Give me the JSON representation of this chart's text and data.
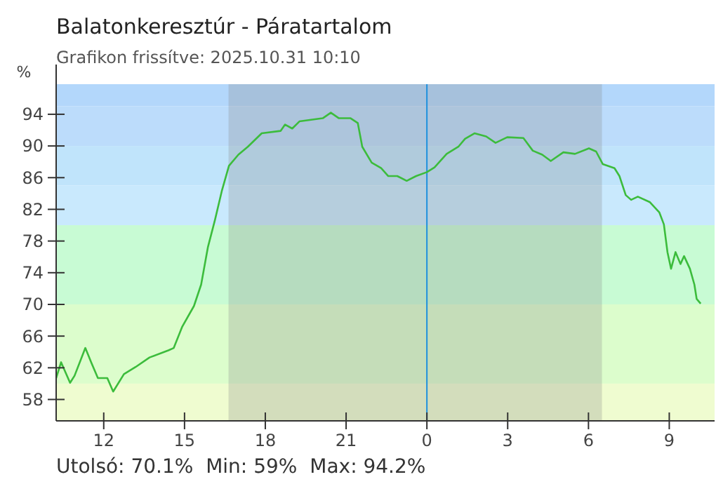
{
  "chart_data": {
    "type": "line",
    "title": "Balatonkeresztúr - Páratartalom",
    "subtitle": "Grafikon frissítve: 2025.10.31 10:10",
    "ylabel": "%",
    "x": [
      "2025-10-30T10:14",
      "2025-10-30T10:25",
      "2025-10-30T10:45",
      "2025-10-30T10:55",
      "2025-10-30T11:19",
      "2025-10-30T11:32",
      "2025-10-30T11:47",
      "2025-10-30T12:08",
      "2025-10-30T12:21",
      "2025-10-30T12:45",
      "2025-10-30T13:11",
      "2025-10-30T13:42",
      "2025-10-30T14:24",
      "2025-10-30T14:36",
      "2025-10-30T14:55",
      "2025-10-30T15:21",
      "2025-10-30T15:37",
      "2025-10-30T15:52",
      "2025-10-30T16:08",
      "2025-10-30T16:23",
      "2025-10-30T16:39",
      "2025-10-30T17:00",
      "2025-10-30T17:21",
      "2025-10-30T17:52",
      "2025-10-30T18:34",
      "2025-10-30T18:44",
      "2025-10-30T19:00",
      "2025-10-30T19:16",
      "2025-10-30T20:08",
      "2025-10-30T20:26",
      "2025-10-30T20:44",
      "2025-10-30T21:10",
      "2025-10-30T21:26",
      "2025-10-30T21:36",
      "2025-10-30T21:57",
      "2025-10-30T22:18",
      "2025-10-30T22:34",
      "2025-10-30T22:54",
      "2025-10-30T23:15",
      "2025-10-30T23:36",
      "2025-10-31T00:00",
      "2025-10-31T00:17",
      "2025-10-31T00:44",
      "2025-10-31T01:10",
      "2025-10-31T01:25",
      "2025-10-31T01:46",
      "2025-10-31T02:12",
      "2025-10-31T02:33",
      "2025-10-31T02:59",
      "2025-10-31T03:35",
      "2025-10-31T03:56",
      "2025-10-31T04:17",
      "2025-10-31T04:36",
      "2025-10-31T05:04",
      "2025-10-31T05:30",
      "2025-10-31T06:01",
      "2025-10-31T06:17",
      "2025-10-31T06:32",
      "2025-10-31T06:58",
      "2025-10-31T07:09",
      "2025-10-31T07:23",
      "2025-10-31T07:35",
      "2025-10-31T07:50",
      "2025-10-31T08:17",
      "2025-10-31T08:38",
      "2025-10-31T08:48",
      "2025-10-31T08:56",
      "2025-10-31T09:04",
      "2025-10-31T09:14",
      "2025-10-31T09:25",
      "2025-10-31T09:33",
      "2025-10-31T09:46",
      "2025-10-31T09:56",
      "2025-10-31T10:01",
      "2025-10-31T10:10"
    ],
    "series": [
      {
        "color": "#3cbc3c",
        "values": [
          60.7,
          62.7,
          60.1,
          61.0,
          64.5,
          62.7,
          60.7,
          60.7,
          59.0,
          61.2,
          62.1,
          63.3,
          64.2,
          64.5,
          67.2,
          69.8,
          72.5,
          77.2,
          80.7,
          84.3,
          87.5,
          88.9,
          89.9,
          91.6,
          91.9,
          92.7,
          92.2,
          93.1,
          93.5,
          94.2,
          93.5,
          93.5,
          92.9,
          89.9,
          87.9,
          87.2,
          86.2,
          86.2,
          85.6,
          86.2,
          86.7,
          87.3,
          89.0,
          89.9,
          90.9,
          91.6,
          91.2,
          90.4,
          91.1,
          91.0,
          89.4,
          88.9,
          88.1,
          89.2,
          89.0,
          89.7,
          89.3,
          87.7,
          87.2,
          86.2,
          83.8,
          83.2,
          83.6,
          82.9,
          81.6,
          80.1,
          76.6,
          74.5,
          76.6,
          75.1,
          76.1,
          74.5,
          72.5,
          70.7,
          70.1
        ]
      }
    ],
    "xlim": [
      "2025-10-30T10:14",
      "2025-10-31T10:41"
    ],
    "ylim": [
      55.3,
      97.8
    ],
    "xticks": [
      {
        "value": "2025-10-30T12:00",
        "label": "12"
      },
      {
        "value": "2025-10-30T15:00",
        "label": "15"
      },
      {
        "value": "2025-10-30T18:00",
        "label": "18"
      },
      {
        "value": "2025-10-30T21:00",
        "label": "21"
      },
      {
        "value": "2025-10-31T00:00",
        "label": "0"
      },
      {
        "value": "2025-10-31T03:00",
        "label": "3"
      },
      {
        "value": "2025-10-31T06:00",
        "label": "6"
      },
      {
        "value": "2025-10-31T09:00",
        "label": "9"
      }
    ],
    "yticks": [
      58,
      62,
      66,
      70,
      74,
      78,
      82,
      86,
      90,
      94
    ],
    "grid": false,
    "marker": "none",
    "line_style": "solid",
    "bands": [
      {
        "axis": "y",
        "from": 95,
        "to": 97.8,
        "color": "#b3d7fb"
      },
      {
        "axis": "y",
        "from": 90,
        "to": 95,
        "color": "#bcdcfb"
      },
      {
        "axis": "y",
        "from": 85,
        "to": 90,
        "color": "#c0e4fb"
      },
      {
        "axis": "y",
        "from": 80,
        "to": 85,
        "color": "#c9e9fd"
      },
      {
        "axis": "y",
        "from": 70,
        "to": 80,
        "color": "#c8fbd4"
      },
      {
        "axis": "y",
        "from": 60,
        "to": 70,
        "color": "#dcfdcc"
      },
      {
        "axis": "y",
        "from": 55.3,
        "to": 60,
        "color": "#effcd0"
      },
      {
        "axis": "x",
        "from": "2025-10-30T16:38",
        "to": "2025-10-31T06:30",
        "color": "#808080"
      }
    ],
    "ref_lines": [
      {
        "axis": "x",
        "value": "2025-10-31T00:00",
        "color": "#1e90dd"
      }
    ],
    "annotations": [
      "Utolsó: 70.1%  Min: 59%  Max: 94.2%"
    ]
  }
}
